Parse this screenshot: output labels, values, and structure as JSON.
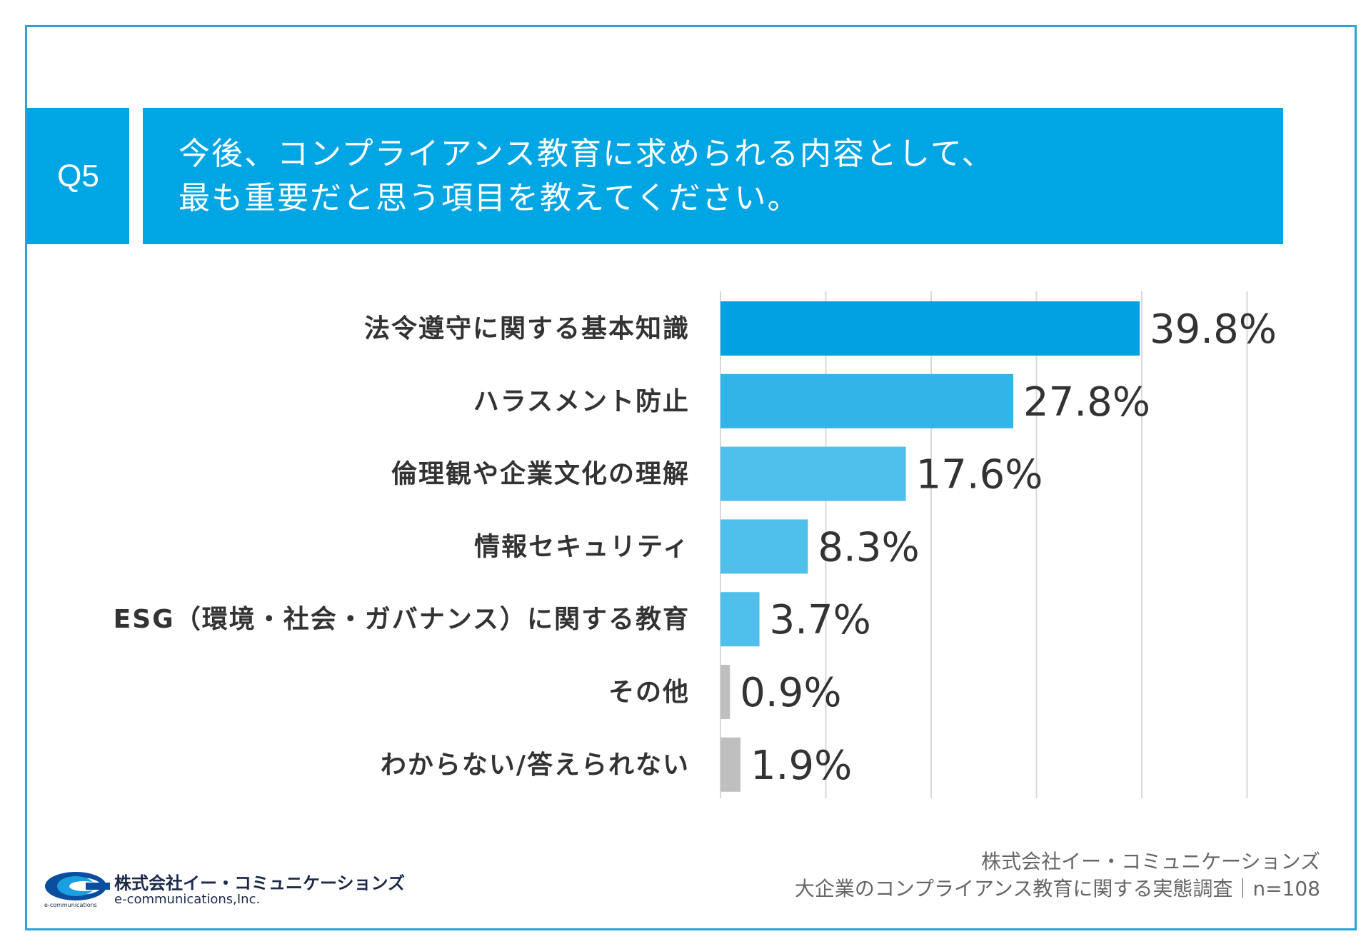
{
  "question": {
    "number": "Q5",
    "line1": "今後、コンプライアンス教育に求められる内容として、",
    "line2": "最も重要だと思う項目を教えてください。"
  },
  "chart_data": {
    "type": "bar",
    "orientation": "horizontal",
    "categories": [
      "法令遵守に関する基本知識",
      "ハラスメント防止",
      "倫理観や企業文化の理解",
      "情報セキュリティ",
      "ESG（環境・社会・ガバナンス）に関する教育",
      "その他",
      "わからない/答えられない"
    ],
    "values": [
      39.8,
      27.8,
      17.6,
      8.3,
      3.7,
      0.9,
      1.9
    ],
    "value_labels": [
      "39.8%",
      "27.8%",
      "17.6%",
      "8.3%",
      "3.7%",
      "0.9%",
      "1.9%"
    ],
    "colors": [
      "#00a3e0",
      "#33b4e8",
      "#4fc0eb",
      "#4fc0eb",
      "#4fc0eb",
      "#bfbfbf",
      "#bfbfbf"
    ],
    "unit": "%",
    "xlim": [
      0,
      50
    ],
    "grid_step": 10,
    "grid": true
  },
  "footer": {
    "company": "株式会社イー・コミュニケーションズ",
    "survey": "大企業のコンプライアンス教育に関する実態調査｜n=108"
  },
  "logo": {
    "jp": "株式会社イー・コミュニケーションズ",
    "en": "e-communications,Inc.",
    "small": "e-communications"
  }
}
